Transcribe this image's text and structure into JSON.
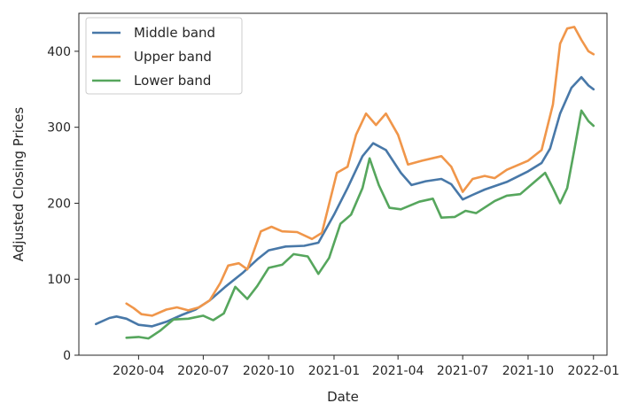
{
  "chart_data": {
    "type": "line",
    "xlabel": "Date",
    "ylabel": "Adjusted Closing Prices",
    "x_tick_labels": [
      "2020-04",
      "2020-07",
      "2020-10",
      "2021-01",
      "2021-04",
      "2021-07",
      "2021-10",
      "2022-01"
    ],
    "y_tick_values": [
      0,
      100,
      200,
      300,
      400
    ],
    "xlim": [
      "2020-01-08",
      "2022-01-20"
    ],
    "ylim": [
      0,
      450
    ],
    "grid": false,
    "legend_position": "top-left",
    "series": [
      {
        "name": "Middle band",
        "color": "#4878a8",
        "points": [
          [
            "2020-02-01",
            41
          ],
          [
            "2020-02-20",
            49
          ],
          [
            "2020-03-01",
            51
          ],
          [
            "2020-03-15",
            48
          ],
          [
            "2020-04-01",
            40
          ],
          [
            "2020-04-20",
            38
          ],
          [
            "2020-05-10",
            44
          ],
          [
            "2020-06-01",
            53
          ],
          [
            "2020-06-20",
            60
          ],
          [
            "2020-07-10",
            72
          ],
          [
            "2020-08-01",
            90
          ],
          [
            "2020-08-25",
            108
          ],
          [
            "2020-09-15",
            126
          ],
          [
            "2020-10-01",
            138
          ],
          [
            "2020-10-25",
            143
          ],
          [
            "2020-11-20",
            144
          ],
          [
            "2020-12-10",
            148
          ],
          [
            "2021-01-01",
            185
          ],
          [
            "2021-01-20",
            220
          ],
          [
            "2021-02-10",
            262
          ],
          [
            "2021-02-25",
            279
          ],
          [
            "2021-03-15",
            270
          ],
          [
            "2021-04-05",
            240
          ],
          [
            "2021-04-20",
            224
          ],
          [
            "2021-05-10",
            229
          ],
          [
            "2021-06-01",
            232
          ],
          [
            "2021-06-15",
            225
          ],
          [
            "2021-07-01",
            205
          ],
          [
            "2021-07-15",
            211
          ],
          [
            "2021-08-01",
            218
          ],
          [
            "2021-09-01",
            228
          ],
          [
            "2021-10-01",
            242
          ],
          [
            "2021-10-20",
            253
          ],
          [
            "2021-11-01",
            272
          ],
          [
            "2021-11-15",
            318
          ],
          [
            "2021-12-01",
            352
          ],
          [
            "2021-12-15",
            366
          ],
          [
            "2021-12-25",
            355
          ],
          [
            "2022-01-01",
            350
          ]
        ]
      },
      {
        "name": "Upper band",
        "color": "#f0964a",
        "points": [
          [
            "2020-03-15",
            68
          ],
          [
            "2020-03-25",
            62
          ],
          [
            "2020-04-05",
            54
          ],
          [
            "2020-04-20",
            52
          ],
          [
            "2020-05-10",
            60
          ],
          [
            "2020-05-25",
            63
          ],
          [
            "2020-06-10",
            59
          ],
          [
            "2020-06-25",
            63
          ],
          [
            "2020-07-10",
            72
          ],
          [
            "2020-07-25",
            95
          ],
          [
            "2020-08-05",
            118
          ],
          [
            "2020-08-20",
            121
          ],
          [
            "2020-09-01",
            113
          ],
          [
            "2020-09-20",
            163
          ],
          [
            "2020-10-05",
            169
          ],
          [
            "2020-10-20",
            163
          ],
          [
            "2020-11-10",
            162
          ],
          [
            "2020-12-01",
            153
          ],
          [
            "2020-12-15",
            161
          ],
          [
            "2021-01-05",
            240
          ],
          [
            "2021-01-20",
            248
          ],
          [
            "2021-02-01",
            290
          ],
          [
            "2021-02-15",
            318
          ],
          [
            "2021-03-01",
            303
          ],
          [
            "2021-03-15",
            318
          ],
          [
            "2021-04-01",
            290
          ],
          [
            "2021-04-15",
            251
          ],
          [
            "2021-05-05",
            256
          ],
          [
            "2021-06-01",
            262
          ],
          [
            "2021-06-15",
            248
          ],
          [
            "2021-07-01",
            215
          ],
          [
            "2021-07-15",
            232
          ],
          [
            "2021-08-01",
            236
          ],
          [
            "2021-08-15",
            233
          ],
          [
            "2021-09-01",
            244
          ],
          [
            "2021-10-01",
            256
          ],
          [
            "2021-10-20",
            270
          ],
          [
            "2021-11-05",
            330
          ],
          [
            "2021-11-15",
            410
          ],
          [
            "2021-11-25",
            430
          ],
          [
            "2021-12-05",
            432
          ],
          [
            "2021-12-15",
            415
          ],
          [
            "2021-12-25",
            400
          ],
          [
            "2022-01-01",
            396
          ]
        ]
      },
      {
        "name": "Lower band",
        "color": "#56a65d",
        "points": [
          [
            "2020-03-15",
            23
          ],
          [
            "2020-04-01",
            24
          ],
          [
            "2020-04-15",
            22
          ],
          [
            "2020-05-01",
            32
          ],
          [
            "2020-05-20",
            47
          ],
          [
            "2020-06-10",
            48
          ],
          [
            "2020-07-01",
            52
          ],
          [
            "2020-07-15",
            46
          ],
          [
            "2020-07-30",
            55
          ],
          [
            "2020-08-15",
            90
          ],
          [
            "2020-09-01",
            74
          ],
          [
            "2020-09-15",
            91
          ],
          [
            "2020-10-01",
            115
          ],
          [
            "2020-10-20",
            119
          ],
          [
            "2020-11-05",
            133
          ],
          [
            "2020-11-25",
            130
          ],
          [
            "2020-12-10",
            107
          ],
          [
            "2020-12-25",
            128
          ],
          [
            "2021-01-10",
            173
          ],
          [
            "2021-01-25",
            185
          ],
          [
            "2021-02-10",
            220
          ],
          [
            "2021-02-20",
            259
          ],
          [
            "2021-03-05",
            224
          ],
          [
            "2021-03-20",
            194
          ],
          [
            "2021-04-05",
            192
          ],
          [
            "2021-05-01",
            202
          ],
          [
            "2021-05-20",
            206
          ],
          [
            "2021-06-01",
            181
          ],
          [
            "2021-06-20",
            182
          ],
          [
            "2021-07-05",
            190
          ],
          [
            "2021-07-20",
            187
          ],
          [
            "2021-08-15",
            203
          ],
          [
            "2021-09-01",
            210
          ],
          [
            "2021-09-20",
            212
          ],
          [
            "2021-10-10",
            228
          ],
          [
            "2021-10-25",
            240
          ],
          [
            "2021-11-05",
            220
          ],
          [
            "2021-11-15",
            200
          ],
          [
            "2021-11-25",
            220
          ],
          [
            "2021-12-05",
            270
          ],
          [
            "2021-12-15",
            322
          ],
          [
            "2021-12-25",
            308
          ],
          [
            "2022-01-01",
            302
          ]
        ]
      }
    ]
  }
}
